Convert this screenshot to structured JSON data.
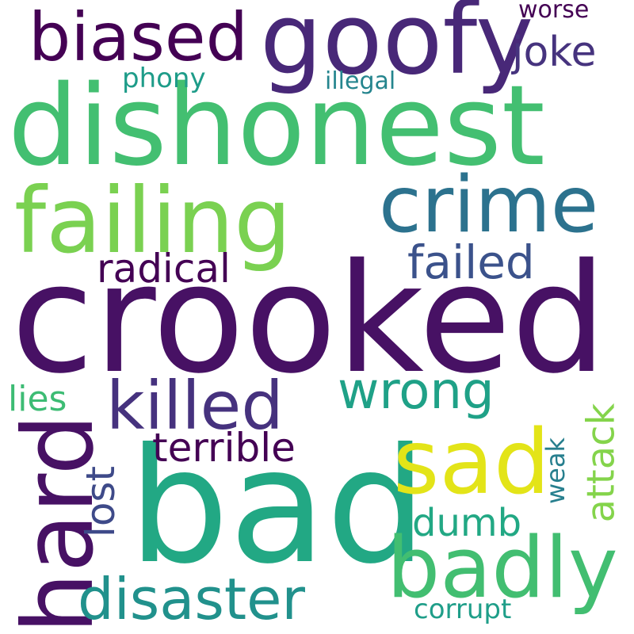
{
  "words": [
    {
      "text": "crooked",
      "color": "#471164"
    },
    {
      "text": "bad",
      "color": "#22A884"
    },
    {
      "text": "dishonest",
      "color": "#43BF71"
    },
    {
      "text": "failing",
      "color": "#7AD151"
    },
    {
      "text": "goofy",
      "color": "#482878"
    },
    {
      "text": "crime",
      "color": "#2C728E"
    },
    {
      "text": "biased",
      "color": "#440154"
    },
    {
      "text": "badly",
      "color": "#42BE71"
    },
    {
      "text": "hard",
      "color": "#471164"
    },
    {
      "text": "sad",
      "color": "#E3E418"
    },
    {
      "text": "killed",
      "color": "#46327E"
    },
    {
      "text": "disaster",
      "color": "#21918C"
    },
    {
      "text": "wrong",
      "color": "#1FA187"
    },
    {
      "text": "failed",
      "color": "#3B528B"
    },
    {
      "text": "radical",
      "color": "#440154"
    },
    {
      "text": "terrible",
      "color": "#440154"
    },
    {
      "text": "joke",
      "color": "#46337E"
    },
    {
      "text": "attack",
      "color": "#84D44B"
    },
    {
      "text": "lost",
      "color": "#3E4A89"
    },
    {
      "text": "dumb",
      "color": "#22A884"
    },
    {
      "text": "lies",
      "color": "#3DBC74"
    },
    {
      "text": "phony",
      "color": "#1E9C89"
    },
    {
      "text": "illegal",
      "color": "#25858E"
    },
    {
      "text": "worse",
      "color": "#440154"
    },
    {
      "text": "weak",
      "color": "#277F8E"
    },
    {
      "text": "corrupt",
      "color": "#1F9E89"
    }
  ]
}
